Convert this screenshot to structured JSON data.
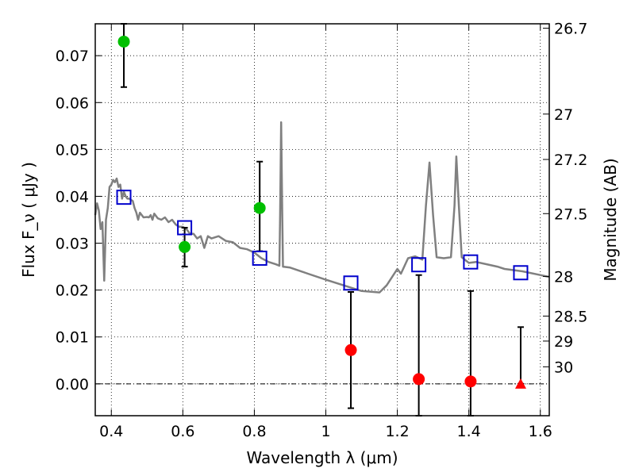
{
  "chart_data": {
    "type": "scatter",
    "xlabel": "Wavelength  λ (μm)",
    "ylabel": "Flux  F_ν  ( μJy )",
    "ylabel_right": "Magnitude (AB)",
    "xlim": [
      0.355,
      1.625
    ],
    "ylim": [
      -0.0068,
      0.0768
    ],
    "grid": true,
    "x_ticks": [
      {
        "value": 0.4,
        "label": "0.4"
      },
      {
        "value": 0.6,
        "label": "0.6"
      },
      {
        "value": 0.8,
        "label": "0.8"
      },
      {
        "value": 1.0,
        "label": "1"
      },
      {
        "value": 1.2,
        "label": "1.2"
      },
      {
        "value": 1.4,
        "label": "1.4"
      },
      {
        "value": 1.6,
        "label": "1.6"
      }
    ],
    "y_ticks": [
      {
        "value": 0.0,
        "label": "0.00"
      },
      {
        "value": 0.01,
        "label": "0.01"
      },
      {
        "value": 0.02,
        "label": "0.02"
      },
      {
        "value": 0.03,
        "label": "0.03"
      },
      {
        "value": 0.04,
        "label": "0.04"
      },
      {
        "value": 0.05,
        "label": "0.05"
      },
      {
        "value": 0.06,
        "label": "0.06"
      },
      {
        "value": 0.07,
        "label": "0.07"
      }
    ],
    "right_ticks": [
      {
        "mag": 26.7,
        "label": "26.7"
      },
      {
        "mag": 27,
        "label": "27"
      },
      {
        "mag": 27.2,
        "label": "27.2"
      },
      {
        "mag": 27.5,
        "label": "27.5"
      },
      {
        "mag": 28,
        "label": "28"
      },
      {
        "mag": 28.5,
        "label": "28.5"
      },
      {
        "mag": 29,
        "label": "29"
      },
      {
        "mag": 30,
        "label": "30"
      }
    ],
    "spectrum": {
      "color": "#808080",
      "points": [
        [
          0.355,
          0.036
        ],
        [
          0.36,
          0.0385
        ],
        [
          0.365,
          0.037
        ],
        [
          0.37,
          0.033
        ],
        [
          0.375,
          0.0345
        ],
        [
          0.38,
          0.022
        ],
        [
          0.385,
          0.035
        ],
        [
          0.39,
          0.0375
        ],
        [
          0.395,
          0.042
        ],
        [
          0.4,
          0.0425
        ],
        [
          0.405,
          0.0435
        ],
        [
          0.41,
          0.043
        ],
        [
          0.415,
          0.0438
        ],
        [
          0.42,
          0.042
        ],
        [
          0.425,
          0.0425
        ],
        [
          0.43,
          0.0395
        ],
        [
          0.435,
          0.041
        ],
        [
          0.44,
          0.04
        ],
        [
          0.445,
          0.0395
        ],
        [
          0.45,
          0.0395
        ],
        [
          0.46,
          0.039
        ],
        [
          0.465,
          0.0375
        ],
        [
          0.47,
          0.0365
        ],
        [
          0.475,
          0.035
        ],
        [
          0.48,
          0.0365
        ],
        [
          0.49,
          0.0355
        ],
        [
          0.5,
          0.0356
        ],
        [
          0.505,
          0.0355
        ],
        [
          0.51,
          0.036
        ],
        [
          0.515,
          0.035
        ],
        [
          0.52,
          0.0363
        ],
        [
          0.53,
          0.0353
        ],
        [
          0.54,
          0.035
        ],
        [
          0.55,
          0.0355
        ],
        [
          0.56,
          0.0345
        ],
        [
          0.57,
          0.035
        ],
        [
          0.58,
          0.034
        ],
        [
          0.59,
          0.0335
        ],
        [
          0.6,
          0.0335
        ],
        [
          0.61,
          0.033
        ],
        [
          0.62,
          0.032
        ],
        [
          0.63,
          0.032
        ],
        [
          0.64,
          0.031
        ],
        [
          0.65,
          0.0315
        ],
        [
          0.66,
          0.029
        ],
        [
          0.67,
          0.0315
        ],
        [
          0.68,
          0.031
        ],
        [
          0.7,
          0.0315
        ],
        [
          0.72,
          0.0305
        ],
        [
          0.74,
          0.0302
        ],
        [
          0.76,
          0.029
        ],
        [
          0.78,
          0.0287
        ],
        [
          0.8,
          0.028
        ],
        [
          0.82,
          0.0268
        ],
        [
          0.84,
          0.026
        ],
        [
          0.86,
          0.0255
        ],
        [
          0.87,
          0.0252
        ],
        [
          0.872,
          0.036
        ],
        [
          0.875,
          0.0558
        ],
        [
          0.878,
          0.036
        ],
        [
          0.88,
          0.025
        ],
        [
          0.9,
          0.0248
        ],
        [
          0.95,
          0.0235
        ],
        [
          1.0,
          0.0222
        ],
        [
          1.05,
          0.021
        ],
        [
          1.1,
          0.0198
        ],
        [
          1.15,
          0.0195
        ],
        [
          1.17,
          0.021
        ],
        [
          1.2,
          0.0245
        ],
        [
          1.21,
          0.0235
        ],
        [
          1.23,
          0.0268
        ],
        [
          1.25,
          0.0272
        ],
        [
          1.27,
          0.0265
        ],
        [
          1.28,
          0.038
        ],
        [
          1.29,
          0.0472
        ],
        [
          1.3,
          0.036
        ],
        [
          1.31,
          0.027
        ],
        [
          1.33,
          0.0268
        ],
        [
          1.35,
          0.027
        ],
        [
          1.36,
          0.038
        ],
        [
          1.365,
          0.0485
        ],
        [
          1.372,
          0.038
        ],
        [
          1.38,
          0.027
        ],
        [
          1.4,
          0.0258
        ],
        [
          1.42,
          0.026
        ],
        [
          1.45,
          0.0255
        ],
        [
          1.48,
          0.025
        ],
        [
          1.5,
          0.0245
        ],
        [
          1.55,
          0.024
        ],
        [
          1.6,
          0.0232
        ],
        [
          1.625,
          0.0228
        ]
      ]
    },
    "series": [
      {
        "marker": "circle",
        "color": "#00bf00",
        "points": [
          {
            "x": 0.435,
            "y": 0.073,
            "ylo": 0.0633,
            "yhi": 0.0768
          },
          {
            "x": 0.605,
            "y": 0.0292,
            "ylo": 0.025,
            "yhi": 0.0333
          },
          {
            "x": 0.815,
            "y": 0.0375,
            "ylo": 0.0283,
            "yhi": 0.0474
          }
        ]
      },
      {
        "marker": "circle",
        "color": "#ff0000",
        "points": [
          {
            "x": 1.07,
            "y": 0.0072,
            "ylo": -0.0052,
            "yhi": 0.0196
          },
          {
            "x": 1.26,
            "y": 0.001,
            "ylo": -0.0068,
            "yhi": 0.0232
          },
          {
            "x": 1.405,
            "y": 0.0005,
            "ylo": -0.0068,
            "yhi": 0.0198
          }
        ]
      },
      {
        "marker": "triangle",
        "color": "#ff0000",
        "points": [
          {
            "x": 1.545,
            "y": 0.0,
            "ylo": 0.0,
            "yhi": 0.0121
          }
        ]
      },
      {
        "marker": "square",
        "color": "#0000cc",
        "points": [
          {
            "x": 0.435,
            "y": 0.0398
          },
          {
            "x": 0.605,
            "y": 0.0333
          },
          {
            "x": 0.815,
            "y": 0.0268
          },
          {
            "x": 1.07,
            "y": 0.0215
          },
          {
            "x": 1.26,
            "y": 0.0254
          },
          {
            "x": 1.405,
            "y": 0.026
          },
          {
            "x": 1.545,
            "y": 0.0237
          }
        ]
      }
    ]
  }
}
